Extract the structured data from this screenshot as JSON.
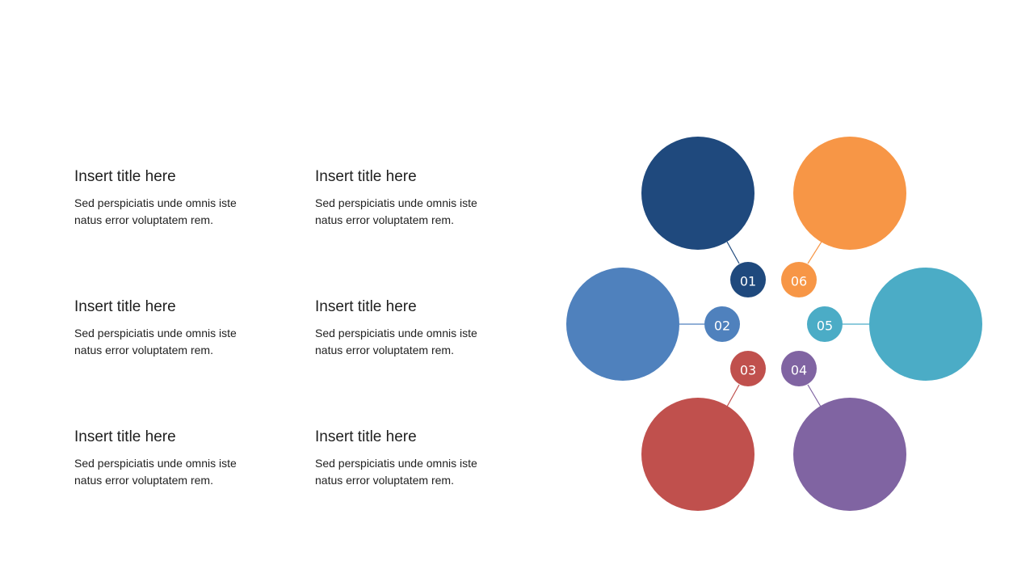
{
  "text_blocks": [
    {
      "title": "Insert title here",
      "body_line1": "Sed perspiciatis unde omnis iste",
      "body_line2": "natus error voluptatem rem."
    },
    {
      "title": "Insert title here",
      "body_line1": "Sed perspiciatis unde omnis iste",
      "body_line2": "natus error voluptatem rem."
    },
    {
      "title": "Insert title here",
      "body_line1": "Sed perspiciatis unde omnis iste",
      "body_line2": "natus error voluptatem rem."
    },
    {
      "title": "Insert title here",
      "body_line1": "Sed perspiciatis unde omnis iste",
      "body_line2": "natus error voluptatem rem."
    },
    {
      "title": "Insert title here",
      "body_line1": "Sed perspiciatis unde omnis iste",
      "body_line2": "natus error voluptatem rem."
    },
    {
      "title": "Insert title here",
      "body_line1": "Sed perspiciatis unde omnis iste",
      "body_line2": "natus error voluptatem rem."
    }
  ],
  "diagram": {
    "nodes": [
      {
        "label": "01",
        "color": "#1f497d"
      },
      {
        "label": "02",
        "color": "#4f81bd"
      },
      {
        "label": "03",
        "color": "#c0504d"
      },
      {
        "label": "04",
        "color": "#8064a2"
      },
      {
        "label": "05",
        "color": "#4bacc6"
      },
      {
        "label": "06",
        "color": "#f79646"
      }
    ]
  }
}
